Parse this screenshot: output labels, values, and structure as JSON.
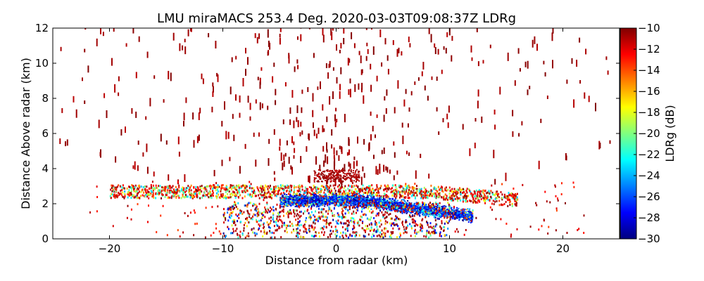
{
  "chart_data": {
    "type": "heatmap",
    "title": "LMU miraMACS 253.4 Deg. 2020-03-03T09:08:37Z  LDRg",
    "xlabel": "Distance from radar (km)",
    "ylabel": "Distance Above radar  (km)",
    "xlim": [
      -25,
      25
    ],
    "ylim": [
      0,
      12
    ],
    "xticks": [
      -20,
      -10,
      0,
      10,
      20
    ],
    "yticks": [
      0,
      2,
      4,
      6,
      8,
      10,
      12
    ],
    "colorbar": {
      "label": "LDRg (dB)",
      "range": [
        -30,
        -10
      ],
      "ticks": [
        -10,
        -12,
        -14,
        -16,
        -18,
        -20,
        -22,
        -24,
        -26,
        -28,
        -30
      ],
      "colormap": "jet"
    },
    "features": [
      {
        "name": "dense low-LDR layer",
        "x_range": [
          -5,
          12
        ],
        "y_center": 2.2,
        "ldr_approx": -28
      },
      {
        "name": "mixed melting/bright band",
        "x_range": [
          -20,
          15
        ],
        "y_range": [
          2.3,
          3.0
        ],
        "ldr_approx": -18
      },
      {
        "name": "sparse high-LDR ice echoes",
        "x_range": [
          -24,
          24
        ],
        "y_range": [
          3,
          12
        ],
        "ldr_approx": -10
      },
      {
        "name": "high-LDR cluster near radar",
        "x_range": [
          -2,
          2
        ],
        "y_range": [
          3.2,
          3.9
        ],
        "ldr_approx": -10
      }
    ]
  },
  "colors": {
    "low": "#00007f",
    "high": "#7f0000"
  }
}
